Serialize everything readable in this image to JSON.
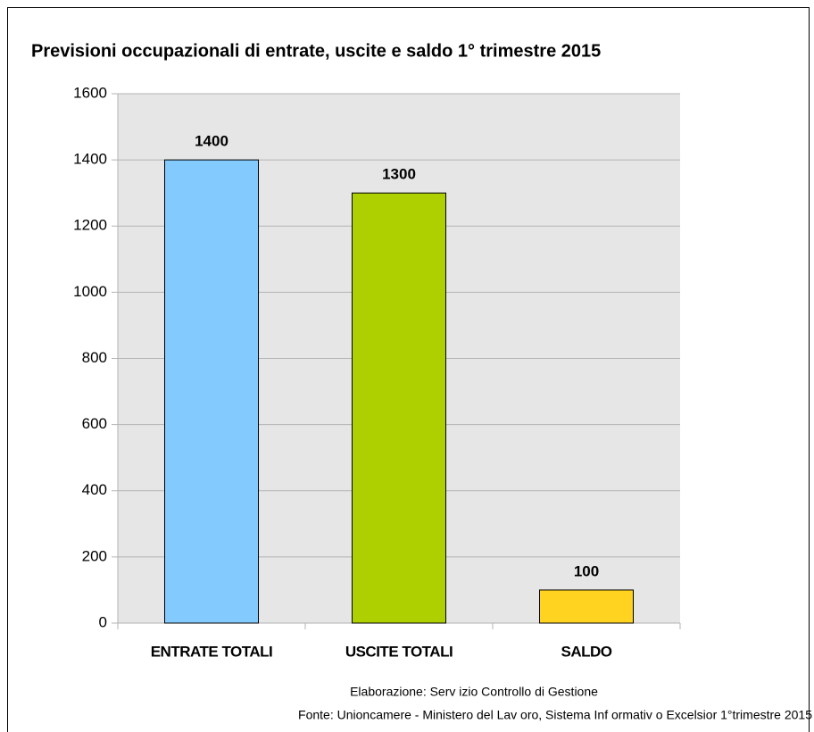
{
  "chart_data": {
    "type": "bar",
    "title": "Previsioni occupazionali di entrate, uscite e saldo 1° trimestre 2015",
    "categories": [
      "ENTRATE TOTALI",
      "USCITE TOTALI",
      "SALDO"
    ],
    "values": [
      1400,
      1300,
      100
    ],
    "colors": [
      "#83caff",
      "#aecf00",
      "#ffd320"
    ],
    "ylim": [
      0,
      1600
    ],
    "yticks": [
      0,
      200,
      400,
      600,
      800,
      1000,
      1200,
      1400,
      1600
    ],
    "grid": true,
    "annotations": [
      "Elaborazione: Serv izio Controllo di Gestione",
      "Fonte: Unioncamere - Ministero del Lav oro, Sistema Inf ormativ o Excelsior 1°trimestre 2015"
    ]
  }
}
